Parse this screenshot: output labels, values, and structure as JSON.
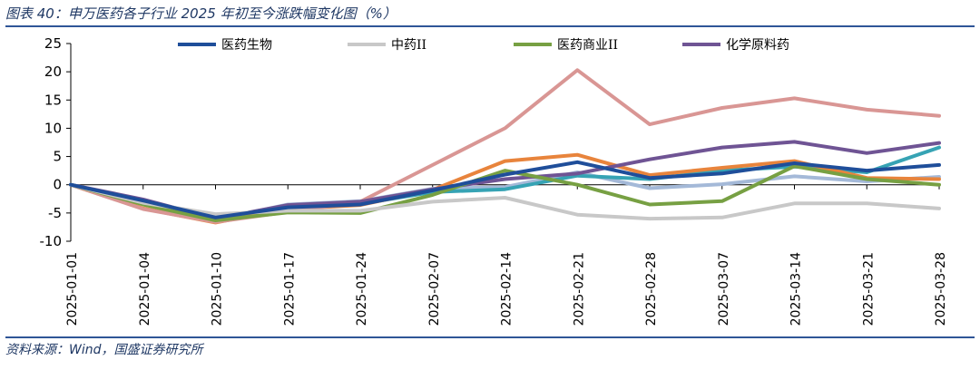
{
  "header": {
    "title": "图表 40：申万医药各子行业 2025 年初至今涨跌幅变化图（%）"
  },
  "footer": {
    "source": "资料来源：Wind，国盛证券研究所"
  },
  "chart_data": {
    "type": "line",
    "categories": [
      "2025-01-01",
      "2025-01-04",
      "2025-01-10",
      "2025-01-17",
      "2025-01-24",
      "2025-02-07",
      "2025-02-14",
      "2025-02-21",
      "2025-02-28",
      "2025-03-07",
      "2025-03-14",
      "2025-03-21",
      "2025-03-28"
    ],
    "ylim": [
      -10,
      25
    ],
    "yticks": [
      25,
      20,
      15,
      10,
      5,
      0,
      -5,
      -10
    ],
    "legend_position": "top",
    "series": [
      {
        "name": "医药生物",
        "color": "#1f4e9a",
        "values": [
          0,
          -2.8,
          -5.8,
          -4.0,
          -3.5,
          -1.0,
          1.8,
          4.0,
          1.2,
          2.0,
          3.8,
          2.5,
          3.5
        ]
      },
      {
        "name": "中药II",
        "color": "#c8c8c8",
        "values": [
          0,
          -3.2,
          -5.2,
          -4.6,
          -4.6,
          -3.0,
          -2.3,
          -5.3,
          -6.0,
          -5.8,
          -3.3,
          -3.3,
          -4.2
        ]
      },
      {
        "name": "医药商业II",
        "color": "#77a043",
        "values": [
          0,
          -3.5,
          -6.3,
          -4.9,
          -5.0,
          -1.8,
          2.5,
          0.0,
          -3.5,
          -2.9,
          3.3,
          1.0,
          0.0
        ]
      },
      {
        "name": "化学原料药",
        "color": "#6f5494",
        "values": [
          0,
          -2.6,
          -6.0,
          -3.6,
          -3.0,
          -0.8,
          1.0,
          2.0,
          4.5,
          6.6,
          7.6,
          5.6,
          7.4
        ]
      },
      {
        "color": "#d99694",
        "values": [
          0,
          -4.3,
          -6.6,
          -4.8,
          -3.0,
          3.5,
          10.0,
          20.3,
          10.7,
          13.6,
          15.3,
          13.3,
          12.2
        ]
      },
      {
        "color": "#e8843c",
        "values": [
          0,
          -4.2,
          -6.7,
          -4.3,
          -3.6,
          -0.9,
          4.2,
          5.3,
          1.7,
          3.0,
          4.2,
          1.2,
          1.0
        ]
      },
      {
        "color": "#36a3b4",
        "values": [
          0,
          -3.0,
          -6.1,
          -4.2,
          -3.4,
          -1.3,
          -0.8,
          1.6,
          1.0,
          2.5,
          3.2,
          2.2,
          6.6
        ]
      },
      {
        "color": "#a4b9d8",
        "values": [
          0,
          -3.3,
          -6.2,
          -3.5,
          -2.9,
          -0.7,
          -0.4,
          2.2,
          -0.6,
          0.1,
          1.5,
          0.6,
          1.4
        ]
      }
    ]
  }
}
